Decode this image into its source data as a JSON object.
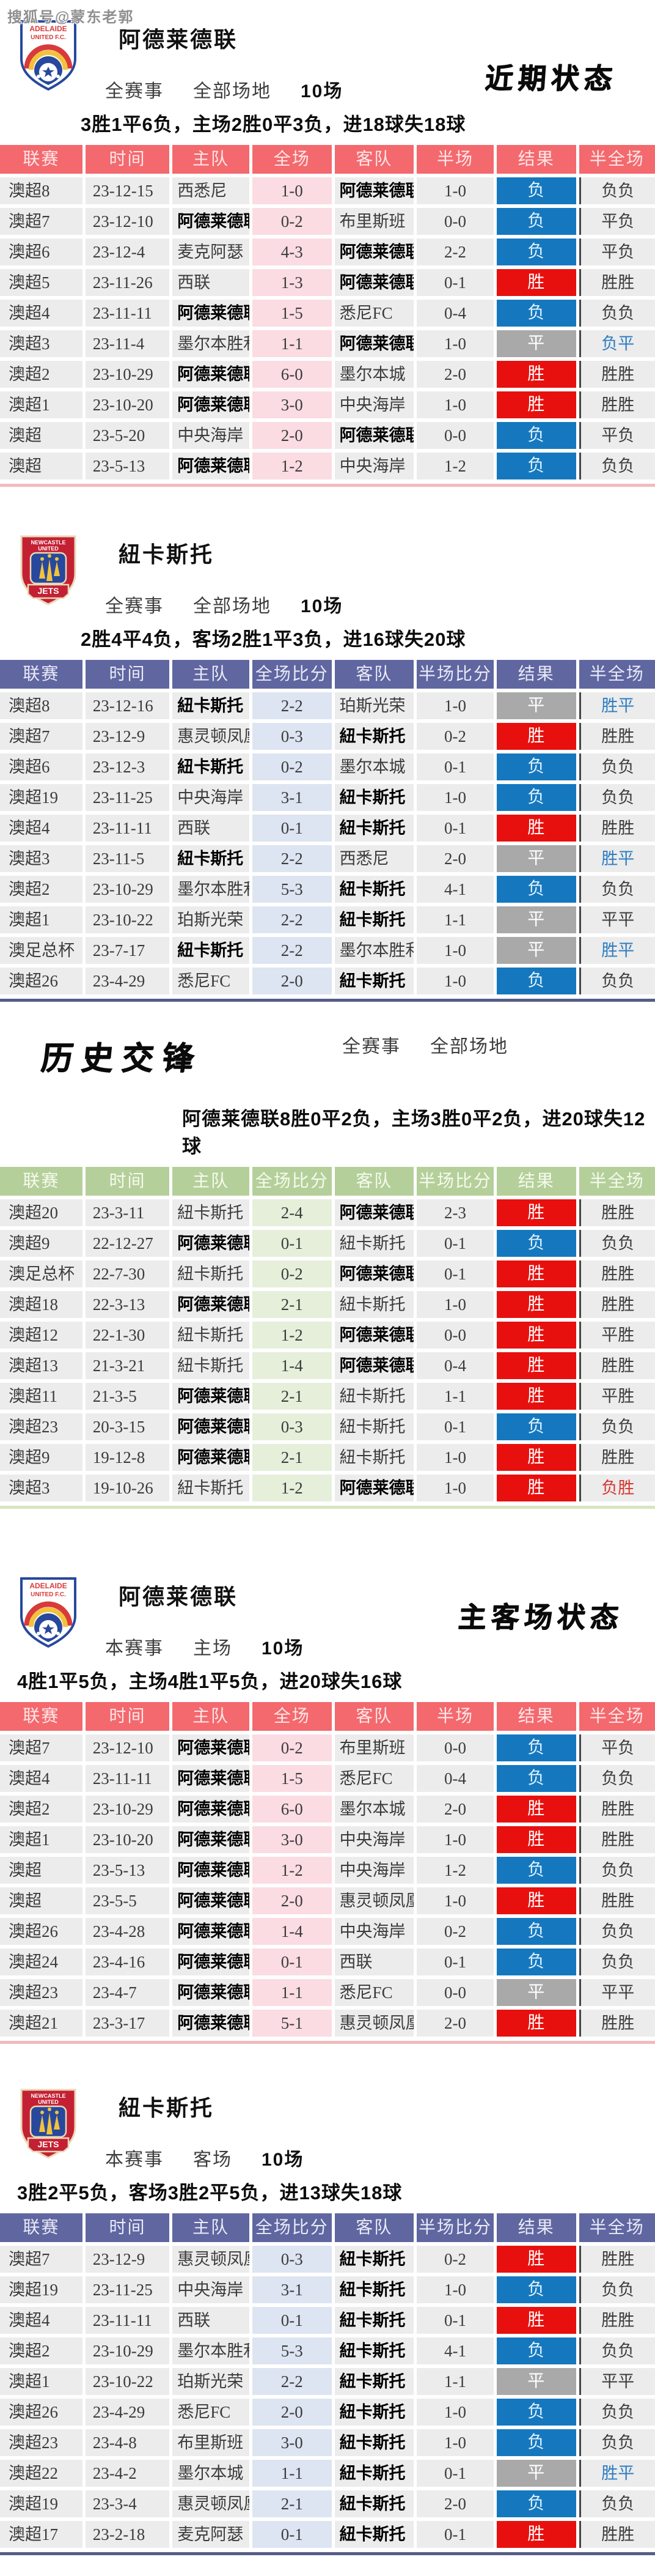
{
  "watermark": "搜狐号@蒙东老郭",
  "colors": {
    "adelaide-header": "#f3696e",
    "jets-header": "#5f66a0",
    "h2h-header": "#b5cf9a",
    "adelaide-score-bg": "#fbdce2",
    "jets-score-bg": "#dde4f2",
    "h2h-score-bg": "#e5efda",
    "win-badge": "#e8100e",
    "loss-badge": "#1578bf",
    "draw-badge": "#a9a9a9",
    "link-blue": "#2d7cc1",
    "alert-red": "#d6362e",
    "row-bg": "#ececec"
  },
  "sections": [
    {
      "id": "adelaide-recent",
      "theme": "red",
      "layout": "team",
      "logo": "adelaide",
      "title": "阿德莱德联",
      "filters": {
        "scope": "全赛事",
        "venue": "全部场地",
        "count": "10场"
      },
      "side_title": "近期状态",
      "summary": "3胜1平6负，主场2胜0平3负，进18球失18球",
      "columns": [
        "联赛",
        "时间",
        "主队",
        "全场",
        "客队",
        "半场",
        "结果",
        "半全场"
      ],
      "rows": [
        {
          "league": "澳超8",
          "date": "23-12-15",
          "home": "西悉尼",
          "ft": "1-0",
          "away": "阿德莱德联",
          "ht": "1-0",
          "result": "负",
          "hf": "负负",
          "bold": "away"
        },
        {
          "league": "澳超7",
          "date": "23-12-10",
          "home": "阿德莱德联",
          "ft": "0-2",
          "away": "布里斯班",
          "ht": "0-0",
          "result": "负",
          "hf": "平负",
          "bold": "home"
        },
        {
          "league": "澳超6",
          "date": "23-12-4",
          "home": "麦克阿瑟",
          "ft": "4-3",
          "away": "阿德莱德联",
          "ht": "2-2",
          "result": "负",
          "hf": "平负",
          "bold": "away"
        },
        {
          "league": "澳超5",
          "date": "23-11-26",
          "home": "西联",
          "ft": "1-3",
          "away": "阿德莱德联",
          "ht": "0-1",
          "result": "胜",
          "hf": "胜胜",
          "bold": "away"
        },
        {
          "league": "澳超4",
          "date": "23-11-11",
          "home": "阿德莱德联",
          "ft": "1-5",
          "away": "悉尼FC",
          "ht": "0-4",
          "result": "负",
          "hf": "负负",
          "bold": "home"
        },
        {
          "league": "澳超3",
          "date": "23-11-4",
          "home": "墨尔本胜利",
          "ft": "1-1",
          "away": "阿德莱德联",
          "ht": "1-0",
          "result": "平",
          "hf": "负平",
          "bold": "away",
          "hf_color": "blue"
        },
        {
          "league": "澳超2",
          "date": "23-10-29",
          "home": "阿德莱德联",
          "ft": "6-0",
          "away": "墨尔本城",
          "ht": "2-0",
          "result": "胜",
          "hf": "胜胜",
          "bold": "home"
        },
        {
          "league": "澳超1",
          "date": "23-10-20",
          "home": "阿德莱德联",
          "ft": "3-0",
          "away": "中央海岸",
          "ht": "1-0",
          "result": "胜",
          "hf": "胜胜",
          "bold": "home"
        },
        {
          "league": "澳超",
          "date": "23-5-20",
          "home": "中央海岸",
          "ft": "2-0",
          "away": "阿德莱德联",
          "ht": "0-0",
          "result": "负",
          "hf": "平负",
          "bold": "away"
        },
        {
          "league": "澳超",
          "date": "23-5-13",
          "home": "阿德莱德联",
          "ft": "1-2",
          "away": "中央海岸",
          "ht": "1-2",
          "result": "负",
          "hf": "负负",
          "bold": "home"
        }
      ]
    },
    {
      "id": "jets-recent",
      "theme": "slate",
      "layout": "team",
      "logo": "jets",
      "title": "紐卡斯托",
      "filters": {
        "scope": "全赛事",
        "venue": "全部场地",
        "count": "10场"
      },
      "side_title": "",
      "summary": "2胜4平4负，客场2胜1平3负，进16球失20球",
      "columns": [
        "联赛",
        "时间",
        "主队",
        "全场比分",
        "客队",
        "半场比分",
        "结果",
        "半全场"
      ],
      "rows": [
        {
          "league": "澳超8",
          "date": "23-12-16",
          "home": "紐卡斯托",
          "ft": "2-2",
          "away": "珀斯光荣",
          "ht": "1-0",
          "result": "平",
          "hf": "胜平",
          "bold": "home",
          "hf_color": "blue"
        },
        {
          "league": "澳超7",
          "date": "23-12-9",
          "home": "惠灵顿凤凰",
          "ft": "0-3",
          "away": "紐卡斯托",
          "ht": "0-2",
          "result": "胜",
          "hf": "胜胜",
          "bold": "away"
        },
        {
          "league": "澳超6",
          "date": "23-12-3",
          "home": "紐卡斯托",
          "ft": "0-2",
          "away": "墨尔本城",
          "ht": "0-1",
          "result": "负",
          "hf": "负负",
          "bold": "home"
        },
        {
          "league": "澳超19",
          "date": "23-11-25",
          "home": "中央海岸",
          "ft": "3-1",
          "away": "紐卡斯托",
          "ht": "1-0",
          "result": "负",
          "hf": "负负",
          "bold": "away"
        },
        {
          "league": "澳超4",
          "date": "23-11-11",
          "home": "西联",
          "ft": "0-1",
          "away": "紐卡斯托",
          "ht": "0-1",
          "result": "胜",
          "hf": "胜胜",
          "bold": "away"
        },
        {
          "league": "澳超3",
          "date": "23-11-5",
          "home": "紐卡斯托",
          "ft": "2-2",
          "away": "西悉尼",
          "ht": "2-0",
          "result": "平",
          "hf": "胜平",
          "bold": "home",
          "hf_color": "blue"
        },
        {
          "league": "澳超2",
          "date": "23-10-29",
          "home": "墨尔本胜利",
          "ft": "5-3",
          "away": "紐卡斯托",
          "ht": "4-1",
          "result": "负",
          "hf": "负负",
          "bold": "away"
        },
        {
          "league": "澳超1",
          "date": "23-10-22",
          "home": "珀斯光荣",
          "ft": "2-2",
          "away": "紐卡斯托",
          "ht": "1-1",
          "result": "平",
          "hf": "平平",
          "bold": "away"
        },
        {
          "league": "澳足总杯",
          "date": "23-7-17",
          "home": "紐卡斯托",
          "ft": "2-2",
          "away": "墨尔本胜利",
          "ht": "1-0",
          "result": "平",
          "hf": "胜平",
          "bold": "home",
          "hf_color": "blue"
        },
        {
          "league": "澳超26",
          "date": "23-4-29",
          "home": "悉尼FC",
          "ft": "2-0",
          "away": "紐卡斯托",
          "ht": "1-0",
          "result": "负",
          "hf": "负负",
          "bold": "away"
        }
      ]
    },
    {
      "id": "h2h",
      "theme": "green",
      "layout": "h2h",
      "logo": "",
      "title": "",
      "filters": {
        "scope": "全赛事",
        "venue": "全部场地",
        "count": ""
      },
      "side_title": "历史交锋",
      "summary": "阿德莱德联8胜0平2负，主场3胜0平2负，进20球失12球",
      "columns": [
        "联赛",
        "时间",
        "主队",
        "全场比分",
        "客队",
        "半场比分",
        "结果",
        "半全场"
      ],
      "rows": [
        {
          "league": "澳超20",
          "date": "23-3-11",
          "home": "紐卡斯托",
          "ft": "2-4",
          "away": "阿德莱德联",
          "ht": "2-3",
          "result": "胜",
          "hf": "胜胜",
          "bold": "away"
        },
        {
          "league": "澳超9",
          "date": "22-12-27",
          "home": "阿德莱德联",
          "ft": "0-1",
          "away": "紐卡斯托",
          "ht": "0-1",
          "result": "负",
          "hf": "负负",
          "bold": "home"
        },
        {
          "league": "澳足总杯",
          "date": "22-7-30",
          "home": "紐卡斯托",
          "ft": "0-2",
          "away": "阿德莱德联",
          "ht": "0-1",
          "result": "胜",
          "hf": "胜胜",
          "bold": "away"
        },
        {
          "league": "澳超18",
          "date": "22-3-13",
          "home": "阿德莱德联",
          "ft": "2-1",
          "away": "紐卡斯托",
          "ht": "1-0",
          "result": "胜",
          "hf": "胜胜",
          "bold": "home"
        },
        {
          "league": "澳超12",
          "date": "22-1-30",
          "home": "紐卡斯托",
          "ft": "1-2",
          "away": "阿德莱德联",
          "ht": "0-0",
          "result": "胜",
          "hf": "平胜",
          "bold": "away"
        },
        {
          "league": "澳超13",
          "date": "21-3-21",
          "home": "紐卡斯托",
          "ft": "1-4",
          "away": "阿德莱德联",
          "ht": "0-4",
          "result": "胜",
          "hf": "胜胜",
          "bold": "away"
        },
        {
          "league": "澳超11",
          "date": "21-3-5",
          "home": "阿德莱德联",
          "ft": "2-1",
          "away": "紐卡斯托",
          "ht": "1-1",
          "result": "胜",
          "hf": "平胜",
          "bold": "home"
        },
        {
          "league": "澳超23",
          "date": "20-3-15",
          "home": "阿德莱德联",
          "ft": "0-3",
          "away": "紐卡斯托",
          "ht": "0-1",
          "result": "负",
          "hf": "负负",
          "bold": "home"
        },
        {
          "league": "澳超9",
          "date": "19-12-8",
          "home": "阿德莱德联",
          "ft": "2-1",
          "away": "紐卡斯托",
          "ht": "1-0",
          "result": "胜",
          "hf": "胜胜",
          "bold": "home"
        },
        {
          "league": "澳超3",
          "date": "19-10-26",
          "home": "紐卡斯托",
          "ft": "1-2",
          "away": "阿德莱德联",
          "ht": "1-0",
          "result": "胜",
          "hf": "负胜",
          "bold": "away",
          "hf_color": "red"
        }
      ]
    },
    {
      "id": "adelaide-home",
      "theme": "red",
      "layout": "team",
      "logo": "adelaide",
      "title": "阿德莱德联",
      "filters": {
        "scope": "本赛事",
        "venue": "主场",
        "count": "10场"
      },
      "side_title": "主客场状态",
      "summary": "4胜1平5负，主场4胜1平5负，进20球失16球",
      "columns": [
        "联赛",
        "时间",
        "主队",
        "全场",
        "客队",
        "半场",
        "结果",
        "半全场"
      ],
      "rows": [
        {
          "league": "澳超7",
          "date": "23-12-10",
          "home": "阿德莱德联",
          "ft": "0-2",
          "away": "布里斯班",
          "ht": "0-0",
          "result": "负",
          "hf": "平负",
          "bold": "home"
        },
        {
          "league": "澳超4",
          "date": "23-11-11",
          "home": "阿德莱德联",
          "ft": "1-5",
          "away": "悉尼FC",
          "ht": "0-4",
          "result": "负",
          "hf": "负负",
          "bold": "home"
        },
        {
          "league": "澳超2",
          "date": "23-10-29",
          "home": "阿德莱德联",
          "ft": "6-0",
          "away": "墨尔本城",
          "ht": "2-0",
          "result": "胜",
          "hf": "胜胜",
          "bold": "home"
        },
        {
          "league": "澳超1",
          "date": "23-10-20",
          "home": "阿德莱德联",
          "ft": "3-0",
          "away": "中央海岸",
          "ht": "1-0",
          "result": "胜",
          "hf": "胜胜",
          "bold": "home"
        },
        {
          "league": "澳超",
          "date": "23-5-13",
          "home": "阿德莱德联",
          "ft": "1-2",
          "away": "中央海岸",
          "ht": "1-2",
          "result": "负",
          "hf": "负负",
          "bold": "home"
        },
        {
          "league": "澳超",
          "date": "23-5-5",
          "home": "阿德莱德联",
          "ft": "2-0",
          "away": "惠灵顿凤凰",
          "ht": "1-0",
          "result": "胜",
          "hf": "胜胜",
          "bold": "home"
        },
        {
          "league": "澳超26",
          "date": "23-4-28",
          "home": "阿德莱德联",
          "ft": "1-4",
          "away": "中央海岸",
          "ht": "0-2",
          "result": "负",
          "hf": "负负",
          "bold": "home"
        },
        {
          "league": "澳超24",
          "date": "23-4-16",
          "home": "阿德莱德联",
          "ft": "0-1",
          "away": "西联",
          "ht": "0-1",
          "result": "负",
          "hf": "负负",
          "bold": "home"
        },
        {
          "league": "澳超23",
          "date": "23-4-7",
          "home": "阿德莱德联",
          "ft": "1-1",
          "away": "悉尼FC",
          "ht": "0-0",
          "result": "平",
          "hf": "平平",
          "bold": "home"
        },
        {
          "league": "澳超21",
          "date": "23-3-17",
          "home": "阿德莱德联",
          "ft": "5-1",
          "away": "惠灵顿凤凰",
          "ht": "2-0",
          "result": "胜",
          "hf": "胜胜",
          "bold": "home"
        }
      ]
    },
    {
      "id": "jets-away",
      "theme": "slate",
      "layout": "team",
      "logo": "jets",
      "title": "紐卡斯托",
      "filters": {
        "scope": "本赛事",
        "venue": "客场",
        "count": "10场"
      },
      "side_title": "",
      "summary": "3胜2平5负，客场3胜2平5负，进13球失18球",
      "columns": [
        "联赛",
        "时间",
        "主队",
        "全场比分",
        "客队",
        "半场比分",
        "结果",
        "半全场"
      ],
      "rows": [
        {
          "league": "澳超7",
          "date": "23-12-9",
          "home": "惠灵顿凤凰",
          "ft": "0-3",
          "away": "紐卡斯托",
          "ht": "0-2",
          "result": "胜",
          "hf": "胜胜",
          "bold": "away"
        },
        {
          "league": "澳超19",
          "date": "23-11-25",
          "home": "中央海岸",
          "ft": "3-1",
          "away": "紐卡斯托",
          "ht": "1-0",
          "result": "负",
          "hf": "负负",
          "bold": "away"
        },
        {
          "league": "澳超4",
          "date": "23-11-11",
          "home": "西联",
          "ft": "0-1",
          "away": "紐卡斯托",
          "ht": "0-1",
          "result": "胜",
          "hf": "胜胜",
          "bold": "away"
        },
        {
          "league": "澳超2",
          "date": "23-10-29",
          "home": "墨尔本胜利",
          "ft": "5-3",
          "away": "紐卡斯托",
          "ht": "4-1",
          "result": "负",
          "hf": "负负",
          "bold": "away"
        },
        {
          "league": "澳超1",
          "date": "23-10-22",
          "home": "珀斯光荣",
          "ft": "2-2",
          "away": "紐卡斯托",
          "ht": "1-1",
          "result": "平",
          "hf": "平平",
          "bold": "away"
        },
        {
          "league": "澳超26",
          "date": "23-4-29",
          "home": "悉尼FC",
          "ft": "2-0",
          "away": "紐卡斯托",
          "ht": "1-0",
          "result": "负",
          "hf": "负负",
          "bold": "away"
        },
        {
          "league": "澳超23",
          "date": "23-4-8",
          "home": "布里斯班",
          "ft": "3-0",
          "away": "紐卡斯托",
          "ht": "1-0",
          "result": "负",
          "hf": "负负",
          "bold": "away"
        },
        {
          "league": "澳超22",
          "date": "23-4-2",
          "home": "墨尔本城",
          "ft": "1-1",
          "away": "紐卡斯托",
          "ht": "0-1",
          "result": "平",
          "hf": "胜平",
          "bold": "away",
          "hf_color": "blue"
        },
        {
          "league": "澳超19",
          "date": "23-3-4",
          "home": "惠灵顿凤凰",
          "ft": "2-1",
          "away": "紐卡斯托",
          "ht": "2-0",
          "result": "负",
          "hf": "负负",
          "bold": "away"
        },
        {
          "league": "澳超17",
          "date": "23-2-18",
          "home": "麦克阿瑟",
          "ft": "0-1",
          "away": "紐卡斯托",
          "ht": "0-1",
          "result": "胜",
          "hf": "胜胜",
          "bold": "away"
        }
      ]
    }
  ]
}
